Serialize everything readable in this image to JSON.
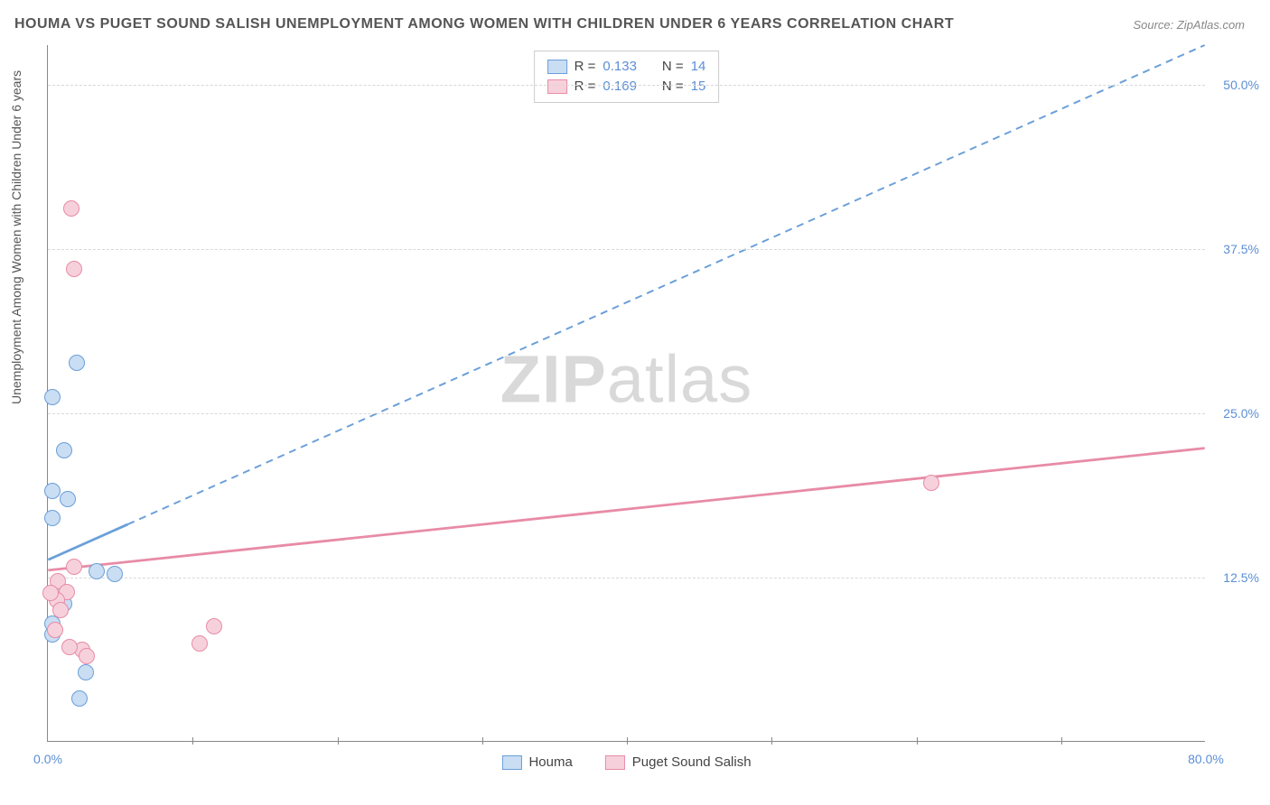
{
  "title": "HOUMA VS PUGET SOUND SALISH UNEMPLOYMENT AMONG WOMEN WITH CHILDREN UNDER 6 YEARS CORRELATION CHART",
  "source": "Source: ZipAtlas.com",
  "ylabel": "Unemployment Among Women with Children Under 6 years",
  "watermark_zip": "ZIP",
  "watermark_atlas": "atlas",
  "chart": {
    "type": "scatter",
    "xlim": [
      0,
      80
    ],
    "ylim": [
      0,
      53
    ],
    "xtick_labels": [
      "0.0%",
      "80.0%"
    ],
    "xtick_positions": [
      0,
      80
    ],
    "xtick_minor": [
      10,
      20,
      30,
      40,
      50,
      60,
      70
    ],
    "ytick_labels": [
      "12.5%",
      "25.0%",
      "37.5%",
      "50.0%"
    ],
    "ytick_positions": [
      12.5,
      25.0,
      37.5,
      50.0
    ],
    "background_color": "#ffffff",
    "grid_color": "#d8d8d8",
    "point_radius": 9,
    "point_border_width": 1.5,
    "series": [
      {
        "name": "Houma",
        "fill": "#c9ddf3",
        "stroke": "#6a9fd8",
        "points": [
          {
            "x": 0.3,
            "y": 26.2
          },
          {
            "x": 1.1,
            "y": 22.2
          },
          {
            "x": 0.3,
            "y": 19.1
          },
          {
            "x": 1.4,
            "y": 18.5
          },
          {
            "x": 0.3,
            "y": 17.0
          },
          {
            "x": 2.0,
            "y": 28.8
          },
          {
            "x": 1.1,
            "y": 10.5
          },
          {
            "x": 3.4,
            "y": 13.0
          },
          {
            "x": 0.3,
            "y": 9.0
          },
          {
            "x": 0.6,
            "y": 11.5
          },
          {
            "x": 2.6,
            "y": 5.3
          },
          {
            "x": 2.2,
            "y": 3.3
          },
          {
            "x": 4.6,
            "y": 12.8
          },
          {
            "x": 0.3,
            "y": 8.2
          }
        ],
        "regression": {
          "x1": 0,
          "y1": 13.8,
          "x2": 80,
          "y2": 53,
          "solid_until_x": 5.5,
          "stroke_width": 2.8
        },
        "R": "0.133",
        "N": "14"
      },
      {
        "name": "Puget Sound Salish",
        "fill": "#f6d1dc",
        "stroke": "#e88ba6",
        "points": [
          {
            "x": 1.6,
            "y": 40.6
          },
          {
            "x": 1.8,
            "y": 36.0
          },
          {
            "x": 1.8,
            "y": 13.3
          },
          {
            "x": 0.7,
            "y": 12.2
          },
          {
            "x": 1.3,
            "y": 11.4
          },
          {
            "x": 0.6,
            "y": 10.8
          },
          {
            "x": 0.9,
            "y": 10.0
          },
          {
            "x": 2.4,
            "y": 7.0
          },
          {
            "x": 1.5,
            "y": 7.2
          },
          {
            "x": 2.7,
            "y": 6.5
          },
          {
            "x": 0.5,
            "y": 8.5
          },
          {
            "x": 10.5,
            "y": 7.5
          },
          {
            "x": 11.5,
            "y": 8.8
          },
          {
            "x": 61.0,
            "y": 19.7
          },
          {
            "x": 0.2,
            "y": 11.3
          }
        ],
        "regression": {
          "x1": 0,
          "y1": 13.0,
          "x2": 80,
          "y2": 22.3,
          "solid_until_x": 80,
          "stroke_width": 2.8
        },
        "R": "0.169",
        "N": "15"
      }
    ]
  },
  "legend_top": {
    "rlabel": "R =",
    "nlabel": "N ="
  },
  "legend_bottom": {
    "series1": "Houma",
    "series2": "Puget Sound Salish"
  }
}
